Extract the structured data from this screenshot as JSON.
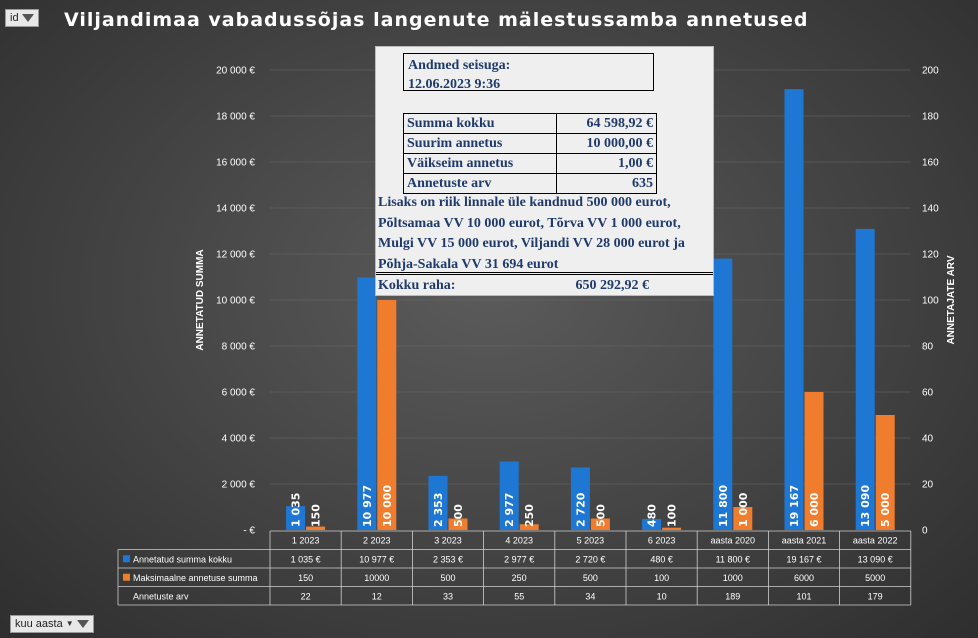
{
  "title": "Viljandimaa vabadussõjas langenute mälestussamba annetused",
  "filters": {
    "top_left": "id",
    "bottom_left": "kuu aasta"
  },
  "infobox": {
    "as_of_label": "Andmed seisuga:",
    "as_of_value": "12.06.2023 9:36",
    "stats": [
      {
        "label": "Summa kokku",
        "value": "64 598,92 €"
      },
      {
        "label": "Suurim annetus",
        "value": "10 000,00 €"
      },
      {
        "label": "Väikseim annetus",
        "value": "1,00 €"
      },
      {
        "label": "Annetuste arv",
        "value": "635"
      }
    ],
    "note": "Lisaks on riik linnale üle kandnud 500 000 eurot, Põltsamaa VV 10 000 eurot, Tõrva VV 1 000 eurot, Mulgi VV 15 000 eurot, Viljandi VV 28 000 eurot ja Põhja-Sakala VV 31 694 eurot",
    "total_label": "Kokku raha:",
    "total_value": "650 292,92 €"
  },
  "chart_data": {
    "type": "bar",
    "categories": [
      "1 2023",
      "2 2023",
      "3 2023",
      "4 2023",
      "5 2023",
      "6 2023",
      "aasta 2020",
      "aasta 2021",
      "aasta 2022"
    ],
    "series": [
      {
        "name": "Annetatud summa kokku",
        "color": "#1f77d4",
        "values": [
          1035,
          10977,
          2353,
          2977,
          2720,
          480,
          11800,
          19167,
          13090
        ],
        "bar_labels": [
          "1 035",
          "10 977",
          "2 353",
          "2 977",
          "2 720",
          "480",
          "11 800",
          "19 167",
          "13 090"
        ],
        "table_values": [
          "1 035 €",
          "10 977 €",
          "2 353 €",
          "2 977 €",
          "2 720 €",
          "480 €",
          "11 800 €",
          "19 167 €",
          "13 090 €"
        ]
      },
      {
        "name": "Maksimaalne annetuse summa",
        "color": "#f07d2e",
        "values": [
          150,
          10000,
          500,
          250,
          500,
          100,
          1000,
          6000,
          5000
        ],
        "bar_labels": [
          "150",
          "10 000",
          "500",
          "250",
          "500",
          "100",
          "1 000",
          "6 000",
          "5 000"
        ],
        "table_values": [
          "150",
          "10000",
          "500",
          "250",
          "500",
          "100",
          "1000",
          "6000",
          "5000"
        ]
      },
      {
        "name": "Annetuste arv",
        "values": [
          22,
          12,
          33,
          55,
          34,
          10,
          189,
          101,
          179
        ],
        "table_values": [
          "22",
          "12",
          "33",
          "55",
          "34",
          "10",
          "189",
          "101",
          "179"
        ]
      }
    ],
    "ylabel": "ANNETATUD SUMMA",
    "y2label": "ANNETAJATE ARV",
    "ylim": [
      0,
      20000
    ],
    "y2lim": [
      0,
      200
    ],
    "yticks": [
      "-  €",
      "2 000 €",
      "4 000 €",
      "6 000 €",
      "8 000 €",
      "10 000 €",
      "12 000 €",
      "14 000 €",
      "16 000 €",
      "18 000 €",
      "20 000 €"
    ],
    "y2ticks": [
      "0",
      "20",
      "40",
      "60",
      "80",
      "100",
      "120",
      "140",
      "160",
      "180",
      "200"
    ],
    "legend": "data-table"
  }
}
